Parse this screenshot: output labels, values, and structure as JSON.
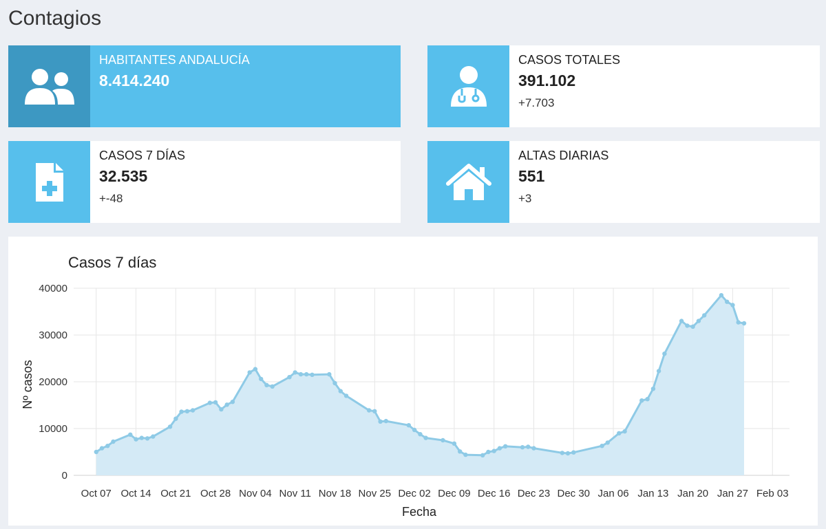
{
  "section_title": "Contagios",
  "cards": {
    "habitantes": {
      "label": "HABITANTES ANDALUCÍA",
      "value": "8.414.240"
    },
    "casos_totales": {
      "label": "CASOS TOTALES",
      "value": "391.102",
      "delta": "+7.703"
    },
    "casos_7dias": {
      "label": "CASOS 7 DÍAS",
      "value": "32.535",
      "delta": "+-48"
    },
    "altas_diarias": {
      "label": "ALTAS DIARIAS",
      "value": "551",
      "delta": "+3"
    }
  },
  "colors": {
    "card_blue": "#57bfec",
    "card_blue_dark": "#3d98c2",
    "line": "#8ecae6",
    "fill": "#d4eaf6"
  },
  "icons": {
    "habitantes": "users-icon",
    "casos_totales": "doctor-icon",
    "casos_7dias": "medical-file-icon",
    "altas_diarias": "home-icon"
  },
  "chart_data": {
    "type": "area",
    "title": "Casos 7 días",
    "xlabel": "Fecha",
    "ylabel": "Nº casos",
    "x_ticks": [
      "Oct 07",
      "Oct 14",
      "Oct 21",
      "Oct 28",
      "Nov 04",
      "Nov 11",
      "Nov 18",
      "Nov 25",
      "Dec 02",
      "Dec 09",
      "Dec 16",
      "Dec 23",
      "Dec 30",
      "Jan 06",
      "Jan 13",
      "Jan 20",
      "Jan 27",
      "Feb 03"
    ],
    "y_ticks": [
      0,
      10000,
      20000,
      30000,
      40000
    ],
    "ylim": [
      0,
      40000
    ],
    "grid": true,
    "series": [
      {
        "x": [
          "2020-10-07",
          "2020-10-08",
          "2020-10-09",
          "2020-10-10",
          "2020-10-13",
          "2020-10-14",
          "2020-10-15",
          "2020-10-16",
          "2020-10-17",
          "2020-10-20",
          "2020-10-21",
          "2020-10-22",
          "2020-10-23",
          "2020-10-24",
          "2020-10-27",
          "2020-10-28",
          "2020-10-29",
          "2020-10-30",
          "2020-10-31",
          "2020-11-03",
          "2020-11-04",
          "2020-11-05",
          "2020-11-06",
          "2020-11-07",
          "2020-11-10",
          "2020-11-11",
          "2020-11-12",
          "2020-11-13",
          "2020-11-14",
          "2020-11-17",
          "2020-11-18",
          "2020-11-19",
          "2020-11-20",
          "2020-11-24",
          "2020-11-25",
          "2020-11-26",
          "2020-11-27",
          "2020-12-01",
          "2020-12-02",
          "2020-12-03",
          "2020-12-04",
          "2020-12-07",
          "2020-12-09",
          "2020-12-10",
          "2020-12-11",
          "2020-12-14",
          "2020-12-15",
          "2020-12-16",
          "2020-12-17",
          "2020-12-18",
          "2020-12-21",
          "2020-12-22",
          "2020-12-23",
          "2020-12-28",
          "2020-12-29",
          "2020-12-30",
          "2021-01-04",
          "2021-01-05",
          "2021-01-07",
          "2021-01-08",
          "2021-01-11",
          "2021-01-12",
          "2021-01-13",
          "2021-01-14",
          "2021-01-15",
          "2021-01-18",
          "2021-01-19",
          "2021-01-20",
          "2021-01-21",
          "2021-01-22",
          "2021-01-25",
          "2021-01-26",
          "2021-01-27",
          "2021-01-28",
          "2021-01-29"
        ],
        "y": [
          5000,
          5800,
          6300,
          7200,
          8700,
          7700,
          8000,
          7900,
          8300,
          10400,
          12100,
          13600,
          13700,
          13900,
          15500,
          15600,
          14100,
          15100,
          15700,
          22000,
          22700,
          20600,
          19300,
          19000,
          21000,
          22000,
          21600,
          21600,
          21500,
          21600,
          19700,
          18000,
          17000,
          13900,
          13700,
          11500,
          11600,
          10700,
          9700,
          8800,
          8000,
          7500,
          6800,
          5100,
          4400,
          4300,
          5000,
          5200,
          5800,
          6200,
          6000,
          6100,
          5800,
          4800,
          4700,
          4900,
          6300,
          7000,
          9000,
          9400,
          16000,
          16300,
          18500,
          22300,
          26000,
          33000,
          32000,
          31800,
          33000,
          34200,
          38500,
          37100,
          36400,
          32700,
          32500
        ]
      }
    ]
  }
}
